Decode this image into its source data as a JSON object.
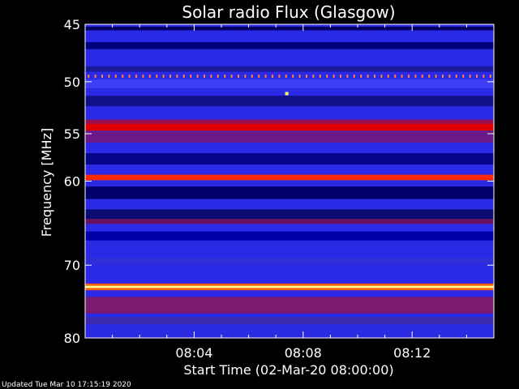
{
  "chart_data": {
    "type": "heatmap",
    "title": "Solar radio Flux (Glasgow)",
    "xlabel": "Start Time (02-Mar-20 08:00:00)",
    "ylabel": "Frequency [MHz]",
    "footer": "Updated Tue Mar 10 17:15:19 2020",
    "xlim_minutes": [
      0,
      15
    ],
    "ylim_mhz": [
      45,
      80
    ],
    "y_scale": "log",
    "x_ticks": [
      {
        "minute": 4,
        "label": "08:04"
      },
      {
        "minute": 8,
        "label": "08:08"
      },
      {
        "minute": 12,
        "label": "08:12"
      }
    ],
    "y_ticks": [
      {
        "mhz": 45,
        "label": "45"
      },
      {
        "mhz": 50,
        "label": "50"
      },
      {
        "mhz": 55,
        "label": "55"
      },
      {
        "mhz": 60,
        "label": "60"
      },
      {
        "mhz": 70,
        "label": "70"
      },
      {
        "mhz": 80,
        "label": "80"
      }
    ],
    "background_color": "#2a2ae6",
    "emission_bands": [
      {
        "mhz_from": 45.2,
        "mhz_to": 45.5,
        "color": "#000060"
      },
      {
        "mhz_from": 46.5,
        "mhz_to": 47.1,
        "color": "#00007a"
      },
      {
        "mhz_from": 48.6,
        "mhz_to": 49.1,
        "color": "#1a1a9a"
      },
      {
        "mhz_from": 49.8,
        "mhz_to": 50.6,
        "color": "#3d3df5"
      },
      {
        "mhz_from": 51.3,
        "mhz_to": 52.3,
        "color": "#101088"
      },
      {
        "mhz_from": 53.6,
        "mhz_to": 54.0,
        "color": "#9a1050"
      },
      {
        "mhz_from": 54.0,
        "mhz_to": 54.7,
        "color": "#e00000"
      },
      {
        "mhz_from": 54.7,
        "mhz_to": 55.9,
        "color": "#6a1a88"
      },
      {
        "mhz_from": 57.0,
        "mhz_to": 58.2,
        "color": "#05058a"
      },
      {
        "mhz_from": 59.3,
        "mhz_to": 59.9,
        "color": "#ff2a00"
      },
      {
        "mhz_from": 60.6,
        "mhz_to": 62.0,
        "color": "#00006a"
      },
      {
        "mhz_from": 63.2,
        "mhz_to": 64.3,
        "color": "#0a0a70"
      },
      {
        "mhz_from": 64.3,
        "mhz_to": 64.9,
        "color": "#6a1060"
      },
      {
        "mhz_from": 65.8,
        "mhz_to": 66.9,
        "color": "#0000a8"
      },
      {
        "mhz_from": 69.0,
        "mhz_to": 69.8,
        "color": "#2f2fd8"
      },
      {
        "mhz_from": 72.4,
        "mhz_to": 72.7,
        "color": "#ff6000"
      },
      {
        "mhz_from": 72.7,
        "mhz_to": 73.0,
        "color": "#ffff80"
      },
      {
        "mhz_from": 73.0,
        "mhz_to": 73.3,
        "color": "#ff6000"
      },
      {
        "mhz_from": 74.2,
        "mhz_to": 76.5,
        "color": "#7a1a70"
      },
      {
        "mhz_from": 77.0,
        "mhz_to": 78.0,
        "color": "#3a2ab0"
      },
      {
        "mhz_from": 78.5,
        "mhz_to": 80.0,
        "color": "#2a2ae0"
      }
    ],
    "interference_band_mhz": 49.5,
    "interference_color": "#ff8030",
    "interference_count": 60,
    "spike": {
      "minute": 7.4,
      "mhz": 51.1,
      "color": "#ffff60"
    }
  }
}
